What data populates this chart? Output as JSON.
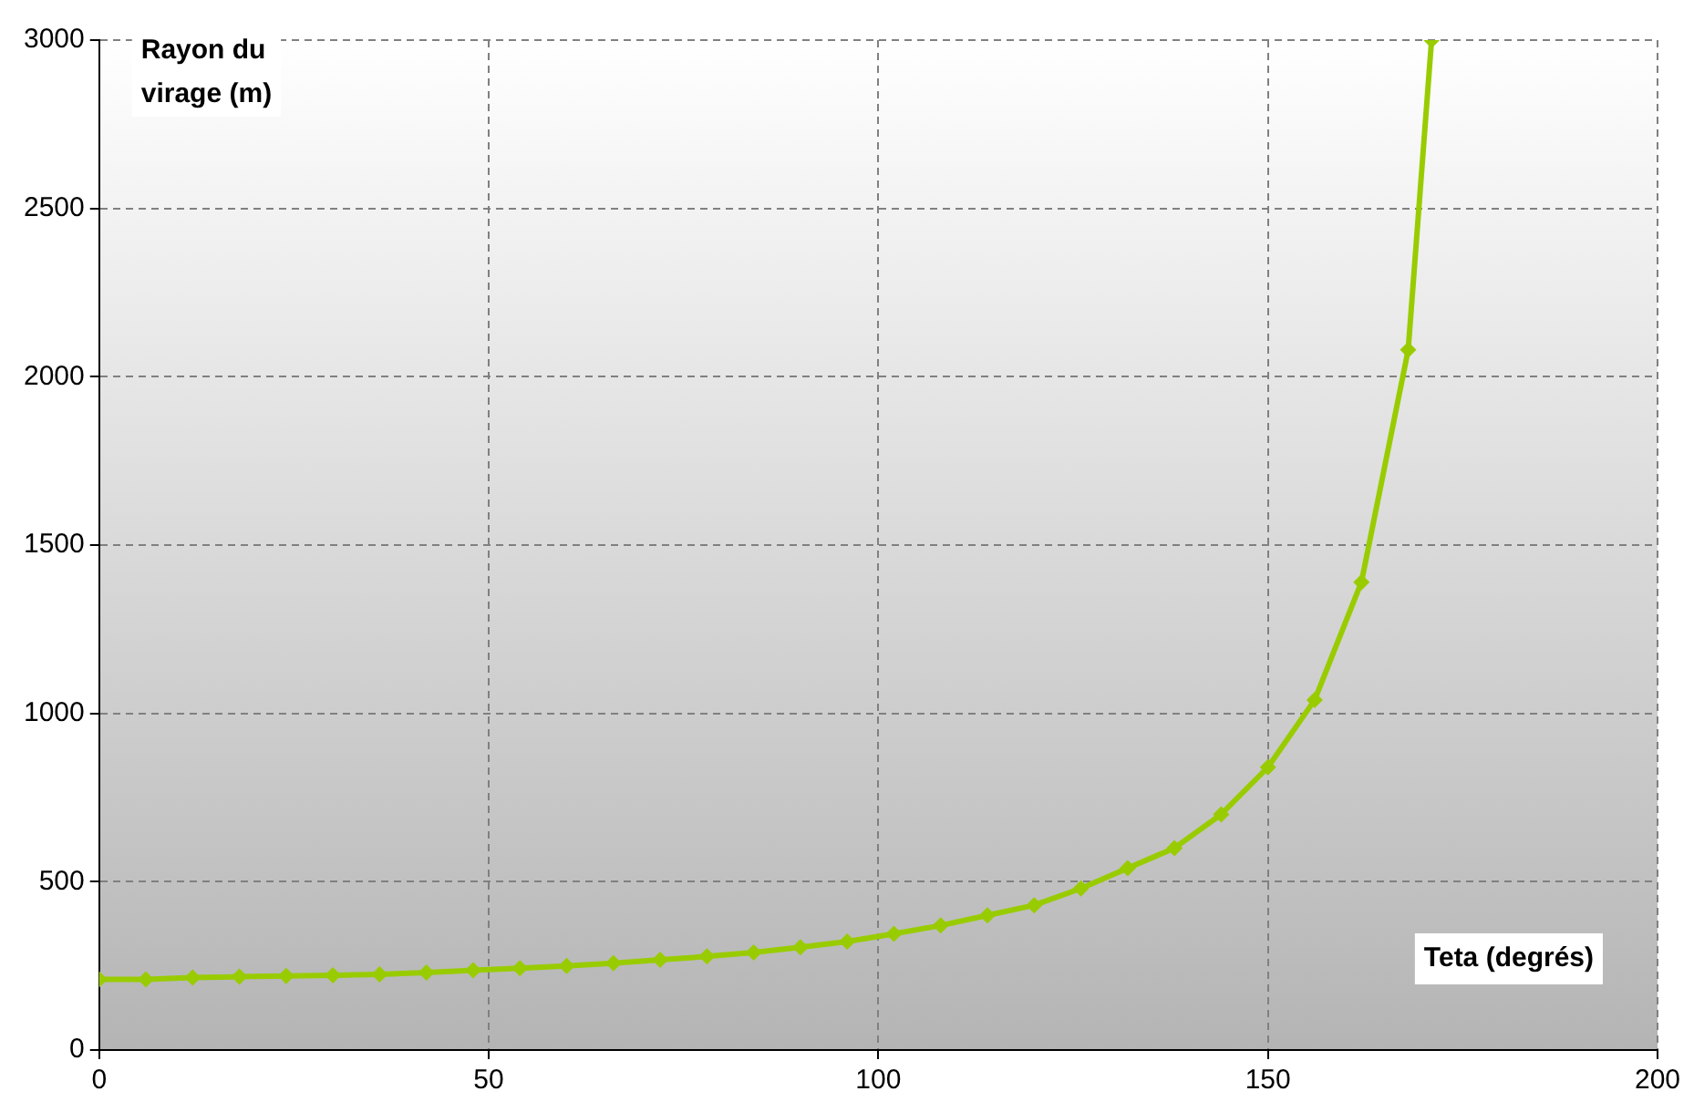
{
  "chart_data": {
    "type": "line",
    "xlabel": "Teta (degrés)",
    "ylabel": "Rayon du virage (m)",
    "x": [
      0,
      6,
      12,
      18,
      24,
      30,
      36,
      42,
      48,
      54,
      60,
      66,
      72,
      78,
      84,
      90,
      96,
      102,
      108,
      114,
      120,
      126,
      132,
      138,
      144,
      150,
      156,
      162,
      168,
      171
    ],
    "series": [
      {
        "color": "#99cc00",
        "values": [
          210,
          210,
          215,
          218,
          220,
          222,
          225,
          230,
          237,
          243,
          250,
          258,
          268,
          278,
          290,
          305,
          322,
          345,
          370,
          400,
          430,
          480,
          540,
          600,
          700,
          840,
          1040,
          1390,
          2080,
          3000
        ]
      }
    ],
    "xlim": [
      0,
      200
    ],
    "xticks": [
      0,
      50,
      100,
      150,
      200
    ],
    "ylim": [
      0,
      3000
    ],
    "yticks": [
      0,
      500,
      1000,
      1500,
      2000,
      2500,
      3000
    ],
    "grid": true,
    "marker": "diamond",
    "line_style": "solid",
    "legend": false
  }
}
